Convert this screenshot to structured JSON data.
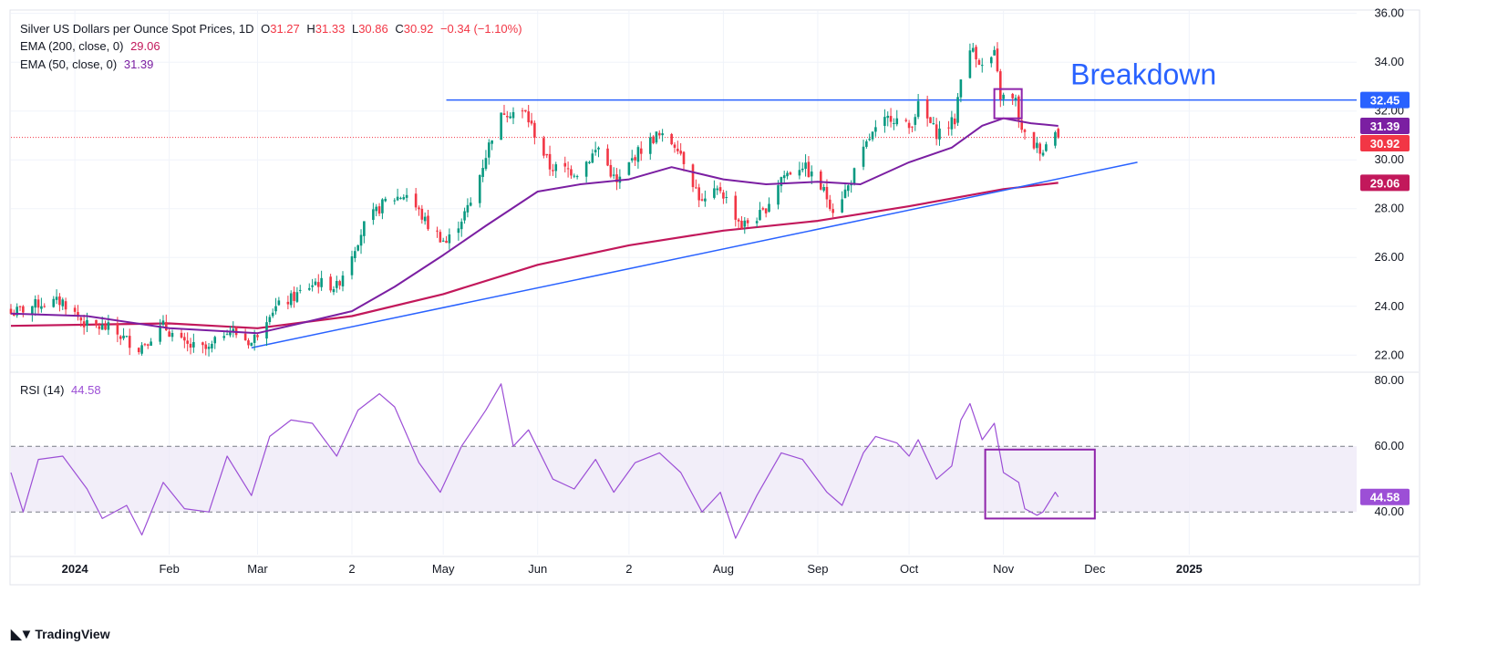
{
  "legend": {
    "title": "Silver US Dollars per Ounce Spot Prices, 1D",
    "open_label": "O",
    "open": "31.27",
    "high_label": "H",
    "high": "31.33",
    "low_label": "L",
    "low": "30.86",
    "close_label": "C",
    "close": "30.92",
    "change": "−0.34 (−1.10%)",
    "ema200_label": "EMA (200, close, 0)",
    "ema200_value": "29.06",
    "ema50_label": "EMA (50, close, 0)",
    "ema50_value": "31.39",
    "rsi_label": "RSI (14)",
    "rsi_value": "44.58"
  },
  "brand": {
    "name": "TradingView",
    "logo_icon": "tradingview-logo-icon"
  },
  "colors": {
    "up": "#089981",
    "down": "#f23645",
    "ema200": "#c2185b",
    "ema50": "#7b1fa2",
    "trendline": "#2962ff",
    "rsi": "#9c4fd6",
    "rsi_band": "#ede7f6",
    "box": "#8e24aa",
    "axis_text": "#131722",
    "grid": "#f0f3fa"
  },
  "chart_data": [
    {
      "type": "candlestick",
      "title": "Silver US Dollars per Ounce Spot Prices, 1D",
      "x_tick_labels": [
        "2024",
        "Feb",
        "Mar",
        "2",
        "May",
        "Jun",
        "2",
        "Aug",
        "Sep",
        "Oct",
        "Nov",
        "Dec",
        "2025"
      ],
      "x_tick_dates": [
        "2024-01-01",
        "2024-02-01",
        "2024-03-01",
        "2024-04-01",
        "2024-05-01",
        "2024-06-01",
        "2024-07-01",
        "2024-08-01",
        "2024-09-01",
        "2024-10-01",
        "2024-11-01",
        "2024-12-01",
        "2025-01-01"
      ],
      "y_ticks": [
        "22.00",
        "24.00",
        "26.00",
        "28.00",
        "30.00",
        "32.00",
        "34.00",
        "36.00"
      ],
      "ylim": [
        21.3,
        36.1
      ],
      "date_range": [
        "2023-12-11",
        "2025-02-25"
      ],
      "first_bar_date": "2023-12-11",
      "last_bar_date": "2024-11-19",
      "anchors": [
        [
          "2023-12-11",
          23.7
        ],
        [
          "2023-12-20",
          24.1
        ],
        [
          "2023-12-28",
          24.2
        ],
        [
          "2024-01-05",
          23.2
        ],
        [
          "2024-01-12",
          23.1
        ],
        [
          "2024-01-22",
          22.3
        ],
        [
          "2024-01-30",
          23.2
        ],
        [
          "2024-02-06",
          22.4
        ],
        [
          "2024-02-14",
          22.2
        ],
        [
          "2024-02-20",
          23.1
        ],
        [
          "2024-02-28",
          22.5
        ],
        [
          "2024-03-05",
          23.8
        ],
        [
          "2024-03-12",
          24.3
        ],
        [
          "2024-03-20",
          25.0
        ],
        [
          "2024-03-27",
          24.8
        ],
        [
          "2024-04-05",
          27.3
        ],
        [
          "2024-04-12",
          28.3
        ],
        [
          "2024-04-19",
          28.6
        ],
        [
          "2024-04-26",
          27.3
        ],
        [
          "2024-05-02",
          26.6
        ],
        [
          "2024-05-10",
          28.2
        ],
        [
          "2024-05-17",
          31.0
        ],
        [
          "2024-05-21",
          32.0
        ],
        [
          "2024-05-28",
          31.9
        ],
        [
          "2024-06-05",
          29.7
        ],
        [
          "2024-06-10",
          29.6
        ],
        [
          "2024-06-14",
          29.5
        ],
        [
          "2024-06-21",
          30.5
        ],
        [
          "2024-06-27",
          29.0
        ],
        [
          "2024-07-03",
          30.2
        ],
        [
          "2024-07-10",
          31.0
        ],
        [
          "2024-07-17",
          30.6
        ],
        [
          "2024-07-25",
          28.2
        ],
        [
          "2024-07-31",
          28.8
        ],
        [
          "2024-08-07",
          27.3
        ],
        [
          "2024-08-14",
          27.8
        ],
        [
          "2024-08-20",
          29.3
        ],
        [
          "2024-08-27",
          29.8
        ],
        [
          "2024-09-03",
          28.7
        ],
        [
          "2024-09-06",
          28.0
        ],
        [
          "2024-09-11",
          28.9
        ],
        [
          "2024-09-18",
          30.9
        ],
        [
          "2024-09-25",
          31.8
        ],
        [
          "2024-10-01",
          31.3
        ],
        [
          "2024-10-04",
          32.2
        ],
        [
          "2024-10-10",
          31.1
        ],
        [
          "2024-10-16",
          31.6
        ],
        [
          "2024-10-18",
          33.5
        ],
        [
          "2024-10-22",
          34.6
        ],
        [
          "2024-10-25",
          33.8
        ],
        [
          "2024-10-29",
          34.3
        ],
        [
          "2024-10-31",
          32.6
        ],
        [
          "2024-11-05",
          32.4
        ],
        [
          "2024-11-07",
          31.1
        ],
        [
          "2024-11-11",
          30.6
        ],
        [
          "2024-11-14",
          30.4
        ],
        [
          "2024-11-18",
          31.3
        ],
        [
          "2024-11-19",
          30.92
        ]
      ],
      "ema200": [
        [
          "2023-12-11",
          23.2
        ],
        [
          "2024-02-01",
          23.3
        ],
        [
          "2024-03-01",
          23.1
        ],
        [
          "2024-04-01",
          23.6
        ],
        [
          "2024-05-01",
          24.5
        ],
        [
          "2024-06-01",
          25.7
        ],
        [
          "2024-07-01",
          26.5
        ],
        [
          "2024-08-01",
          27.1
        ],
        [
          "2024-09-01",
          27.5
        ],
        [
          "2024-10-01",
          28.1
        ],
        [
          "2024-11-01",
          28.8
        ],
        [
          "2024-11-19",
          29.06
        ]
      ],
      "ema50": [
        [
          "2023-12-11",
          23.7
        ],
        [
          "2024-01-05",
          23.6
        ],
        [
          "2024-02-01",
          23.1
        ],
        [
          "2024-03-01",
          22.9
        ],
        [
          "2024-03-15",
          23.3
        ],
        [
          "2024-04-01",
          23.8
        ],
        [
          "2024-04-15",
          24.8
        ],
        [
          "2024-05-01",
          26.1
        ],
        [
          "2024-05-15",
          27.3
        ],
        [
          "2024-06-01",
          28.7
        ],
        [
          "2024-06-15",
          29.0
        ],
        [
          "2024-07-01",
          29.2
        ],
        [
          "2024-07-15",
          29.7
        ],
        [
          "2024-08-01",
          29.2
        ],
        [
          "2024-08-15",
          29.0
        ],
        [
          "2024-09-01",
          29.1
        ],
        [
          "2024-09-15",
          29.0
        ],
        [
          "2024-10-01",
          29.9
        ],
        [
          "2024-10-15",
          30.5
        ],
        [
          "2024-10-25",
          31.4
        ],
        [
          "2024-11-01",
          31.7
        ],
        [
          "2024-11-10",
          31.5
        ],
        [
          "2024-11-19",
          31.39
        ]
      ],
      "lines": [
        {
          "kind": "horizontal",
          "start_date": "2024-05-02",
          "end_date": "2025-02-25",
          "value": 32.45
        },
        {
          "kind": "trend",
          "points": [
            [
              "2024-02-28",
              22.3
            ],
            [
              "2024-12-15",
              29.9
            ]
          ]
        },
        {
          "kind": "last-price",
          "value": 30.92,
          "style": "dotted"
        }
      ],
      "annotations": [
        {
          "text": "Breakdown",
          "date": "2024-11-23",
          "value": 33.1
        },
        {
          "kind": "box",
          "dates": [
            "2024-10-29",
            "2024-11-07"
          ],
          "values": [
            31.7,
            32.9
          ]
        }
      ],
      "price_labels": [
        {
          "text": "32.45",
          "value": 32.45,
          "color": "#2962ff"
        },
        {
          "text": "31.39",
          "value": 31.39,
          "color": "#7b1fa2"
        },
        {
          "text": "30.92",
          "value": 30.92,
          "color": "#f23645"
        },
        {
          "text": "29.06",
          "value": 29.06,
          "color": "#c2185b"
        }
      ]
    },
    {
      "type": "line",
      "title": "RSI (14)",
      "y_ticks": [
        "40.00",
        "60.00",
        "80.00"
      ],
      "ylim": [
        27,
        82
      ],
      "band": [
        40,
        60
      ],
      "rsi": [
        [
          "2023-12-11",
          52
        ],
        [
          "2023-12-15",
          40
        ],
        [
          "2023-12-20",
          56
        ],
        [
          "2023-12-28",
          57
        ],
        [
          "2024-01-05",
          47
        ],
        [
          "2024-01-10",
          38
        ],
        [
          "2024-01-18",
          42
        ],
        [
          "2024-01-23",
          33
        ],
        [
          "2024-01-30",
          49
        ],
        [
          "2024-02-06",
          41
        ],
        [
          "2024-02-14",
          40
        ],
        [
          "2024-02-20",
          57
        ],
        [
          "2024-02-28",
          45
        ],
        [
          "2024-03-05",
          63
        ],
        [
          "2024-03-12",
          68
        ],
        [
          "2024-03-19",
          67
        ],
        [
          "2024-03-27",
          57
        ],
        [
          "2024-04-03",
          71
        ],
        [
          "2024-04-10",
          76
        ],
        [
          "2024-04-15",
          72
        ],
        [
          "2024-04-23",
          55
        ],
        [
          "2024-04-30",
          46
        ],
        [
          "2024-05-07",
          60
        ],
        [
          "2024-05-15",
          71
        ],
        [
          "2024-05-20",
          79
        ],
        [
          "2024-05-24",
          60
        ],
        [
          "2024-05-29",
          65
        ],
        [
          "2024-06-06",
          50
        ],
        [
          "2024-06-13",
          47
        ],
        [
          "2024-06-20",
          56
        ],
        [
          "2024-06-26",
          46
        ],
        [
          "2024-07-03",
          55
        ],
        [
          "2024-07-11",
          58
        ],
        [
          "2024-07-18",
          52
        ],
        [
          "2024-07-25",
          40
        ],
        [
          "2024-07-31",
          46
        ],
        [
          "2024-08-05",
          32
        ],
        [
          "2024-08-12",
          45
        ],
        [
          "2024-08-20",
          58
        ],
        [
          "2024-08-27",
          56
        ],
        [
          "2024-09-04",
          46
        ],
        [
          "2024-09-09",
          42
        ],
        [
          "2024-09-16",
          58
        ],
        [
          "2024-09-20",
          63
        ],
        [
          "2024-09-27",
          61
        ],
        [
          "2024-10-01",
          57
        ],
        [
          "2024-10-04",
          62
        ],
        [
          "2024-10-10",
          50
        ],
        [
          "2024-10-15",
          54
        ],
        [
          "2024-10-18",
          68
        ],
        [
          "2024-10-21",
          73
        ],
        [
          "2024-10-25",
          62
        ],
        [
          "2024-10-29",
          67
        ],
        [
          "2024-11-01",
          52
        ],
        [
          "2024-11-06",
          49
        ],
        [
          "2024-11-08",
          41
        ],
        [
          "2024-11-12",
          39
        ],
        [
          "2024-11-14",
          40
        ],
        [
          "2024-11-18",
          46
        ],
        [
          "2024-11-19",
          44.58
        ]
      ],
      "annotations": [
        {
          "kind": "box",
          "dates": [
            "2024-10-26",
            "2024-12-01"
          ],
          "values": [
            38,
            59
          ]
        }
      ],
      "price_labels": [
        {
          "text": "44.58",
          "value": 44.58,
          "color": "#9c4fd6"
        }
      ]
    }
  ]
}
